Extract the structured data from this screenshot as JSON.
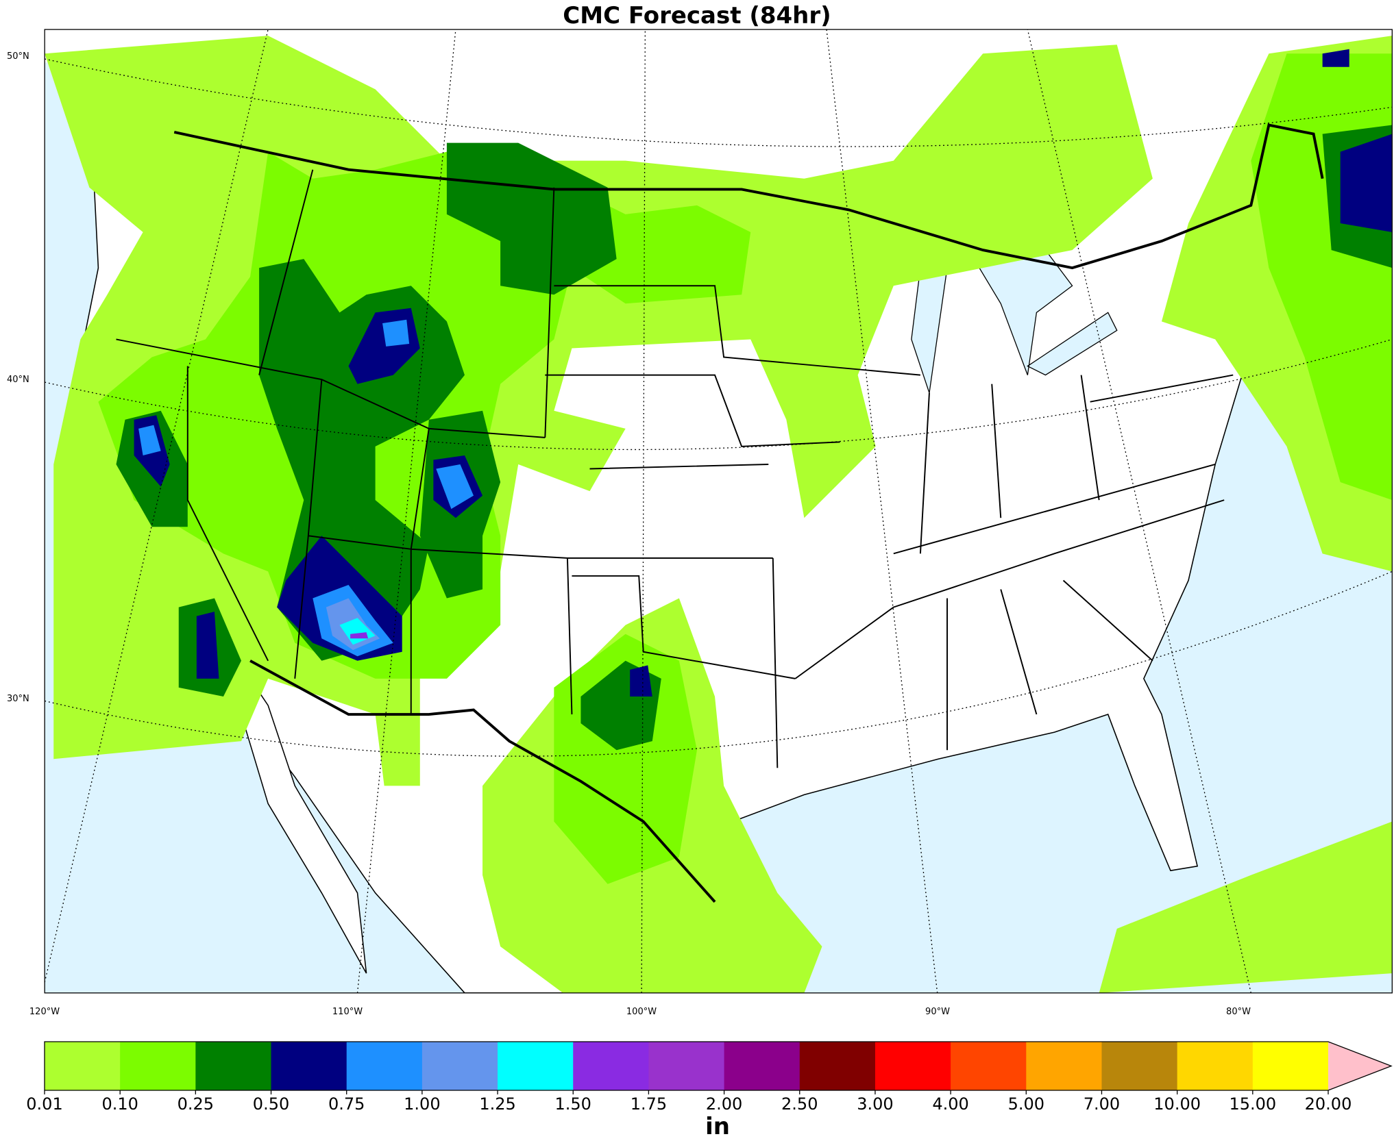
{
  "map": {
    "title": "CMC Forecast (84hr)",
    "lat_labels": [
      "50°N",
      "40°N",
      "30°N"
    ],
    "lon_labels": [
      "120°W",
      "110°W",
      "100°W",
      "90°W",
      "80°W"
    ],
    "colorbar": {
      "label": "in",
      "ticks": [
        "0.01",
        "0.10",
        "0.25",
        "0.50",
        "0.75",
        "1.00",
        "1.25",
        "1.50",
        "1.75",
        "2.00",
        "2.50",
        "3.00",
        "4.00",
        "5.00",
        "7.00",
        "10.00",
        "15.00",
        "20.00"
      ],
      "colors": [
        "#adff2f",
        "#7cfc00",
        "#008000",
        "#000080",
        "#1e90ff",
        "#6495ed",
        "#00ffff",
        "#8a2be2",
        "#9932cc",
        "#8b008b",
        "#800000",
        "#ff0000",
        "#ff4500",
        "#ffa500",
        "#b8860b",
        "#ffd700",
        "#ffff00"
      ],
      "extend_color": "#ffc0cb"
    }
  }
}
